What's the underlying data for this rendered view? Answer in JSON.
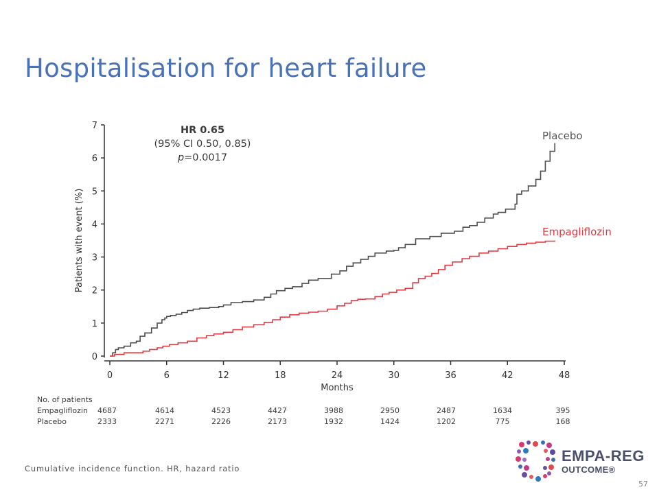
{
  "slide": {
    "title": "Hospitalisation for heart failure",
    "footnote": "Cumulative incidence function. HR, hazard ratio",
    "page_number": "57"
  },
  "annotation": {
    "hr": "HR 0.65",
    "ci": "(95% CI 0.50, 0.85)",
    "p_label": "p",
    "p_value": "=0.0017"
  },
  "logo": {
    "line1": "EMPA-REG",
    "line2": "OUTCOME®"
  },
  "risk_table": {
    "header": "No. of patients",
    "rows": [
      {
        "label": "Empagliflozin",
        "values": [
          "4687",
          "4614",
          "4523",
          "4427",
          "3988",
          "2950",
          "2487",
          "1634",
          "395"
        ]
      },
      {
        "label": "Placebo",
        "values": [
          "2333",
          "2271",
          "2226",
          "2173",
          "1932",
          "1424",
          "1202",
          "775",
          "168"
        ]
      }
    ]
  },
  "chart_data": {
    "type": "line",
    "step": true,
    "title": "",
    "xlabel": "Months",
    "ylabel": "Patients with event (%)",
    "xlim": [
      0,
      48
    ],
    "ylim": [
      0,
      7
    ],
    "xticks": [
      0,
      6,
      12,
      18,
      24,
      30,
      36,
      42,
      48
    ],
    "yticks": [
      0,
      1,
      2,
      3,
      4,
      5,
      6,
      7
    ],
    "grid": false,
    "series": [
      {
        "name": "Placebo",
        "color": "#4d4d4d",
        "x": [
          0,
          0.3,
          0.6,
          0.9,
          1.5,
          2.2,
          2.8,
          3.2,
          3.7,
          4.4,
          5.0,
          5.5,
          5.8,
          6.0,
          6.4,
          7.0,
          7.6,
          8.2,
          8.8,
          9.5,
          10.5,
          11.5,
          12.0,
          12.8,
          14.0,
          15.2,
          16.3,
          17.0,
          17.6,
          18.5,
          19.3,
          20.3,
          21.0,
          22.0,
          23.4,
          24.3,
          25.0,
          25.7,
          26.5,
          27.3,
          28.0,
          29.2,
          30.0,
          30.5,
          31.2,
          32.3,
          33.8,
          35.0,
          36.4,
          37.3,
          38.0,
          38.8,
          39.6,
          40.5,
          41.0,
          41.8,
          42.5,
          42.8,
          43.0,
          43.5,
          44.2,
          45.0,
          45.5,
          46.0,
          46.5,
          47.0
        ],
        "y": [
          0,
          0.1,
          0.2,
          0.25,
          0.3,
          0.4,
          0.45,
          0.6,
          0.7,
          0.85,
          1.0,
          1.1,
          1.15,
          1.2,
          1.23,
          1.27,
          1.32,
          1.38,
          1.42,
          1.45,
          1.47,
          1.5,
          1.55,
          1.62,
          1.65,
          1.7,
          1.78,
          1.88,
          1.98,
          2.05,
          2.1,
          2.2,
          2.3,
          2.35,
          2.48,
          2.58,
          2.72,
          2.82,
          2.93,
          3.02,
          3.12,
          3.18,
          3.2,
          3.28,
          3.38,
          3.55,
          3.62,
          3.72,
          3.78,
          3.9,
          3.95,
          4.05,
          4.18,
          4.3,
          4.35,
          4.45,
          4.45,
          4.6,
          4.9,
          5.0,
          5.15,
          5.35,
          5.6,
          5.9,
          6.2,
          6.45
        ]
      },
      {
        "name": "Empagliflozin",
        "color": "#e23a42",
        "x": [
          0,
          0.5,
          1.5,
          3.5,
          4.2,
          5.0,
          5.6,
          6.3,
          7.2,
          8.2,
          9.2,
          10.2,
          11.0,
          12.0,
          13.0,
          14.0,
          15.2,
          16.3,
          17.2,
          18.0,
          19.0,
          20.0,
          21.0,
          22.0,
          23.0,
          24.0,
          24.8,
          25.5,
          26.2,
          27.0,
          28.0,
          28.8,
          29.5,
          30.3,
          31.2,
          32.0,
          32.6,
          33.3,
          34.0,
          34.7,
          35.4,
          36.2,
          37.2,
          38.0,
          39.0,
          40.0,
          41.0,
          42.0,
          43.0,
          44.0,
          45.0,
          46.0,
          47.0
        ],
        "y": [
          0,
          0.05,
          0.1,
          0.15,
          0.2,
          0.25,
          0.3,
          0.35,
          0.4,
          0.45,
          0.55,
          0.62,
          0.67,
          0.72,
          0.8,
          0.88,
          0.95,
          1.02,
          1.1,
          1.18,
          1.25,
          1.3,
          1.33,
          1.36,
          1.42,
          1.52,
          1.6,
          1.68,
          1.72,
          1.73,
          1.8,
          1.88,
          1.93,
          2.0,
          2.05,
          2.22,
          2.35,
          2.42,
          2.5,
          2.62,
          2.75,
          2.85,
          2.95,
          3.02,
          3.12,
          3.18,
          3.25,
          3.32,
          3.38,
          3.42,
          3.45,
          3.48,
          3.5
        ]
      }
    ]
  }
}
